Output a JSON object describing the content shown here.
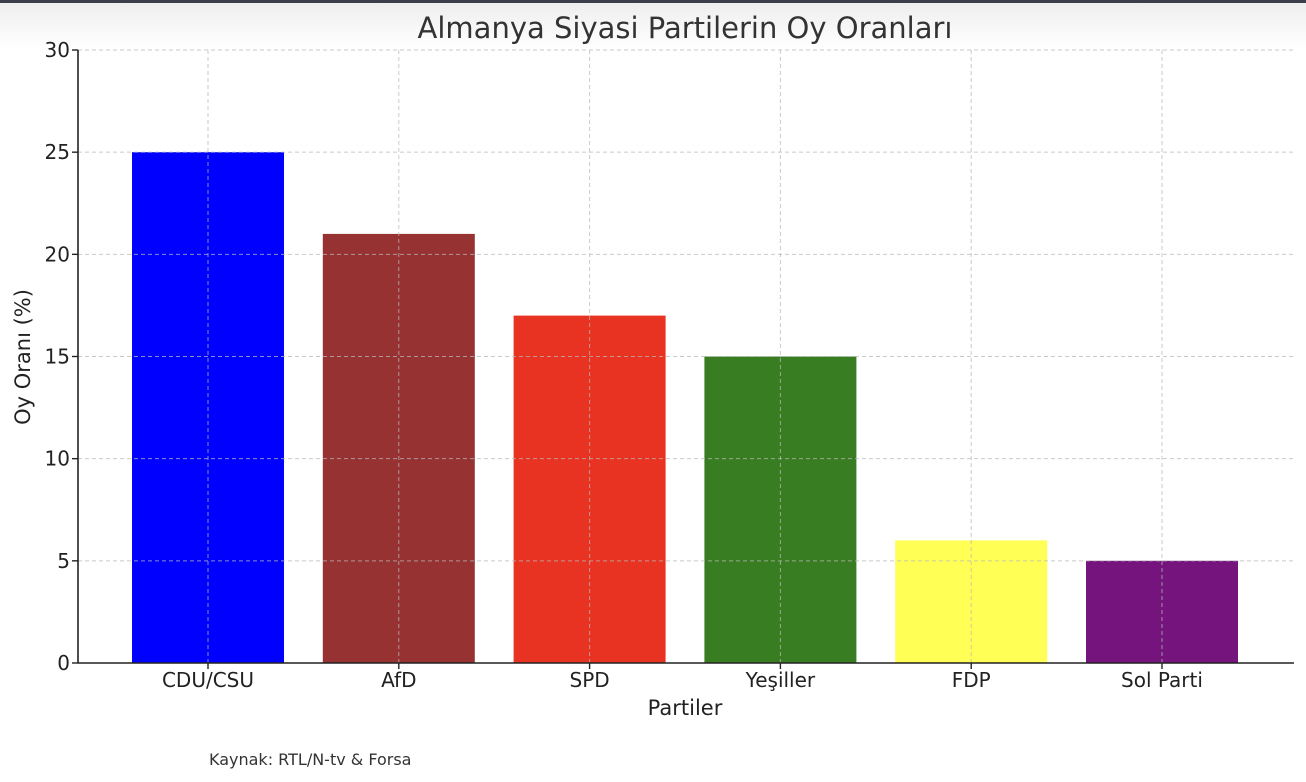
{
  "chart_data": {
    "type": "bar",
    "title": "Almanya Siyasi Partilerin Oy Oranları",
    "xlabel": "Partiler",
    "ylabel": "Oy Oranı (%)",
    "categories": [
      "CDU/CSU",
      "AfD",
      "SPD",
      "Yeşiller",
      "FDP",
      "Sol Parti"
    ],
    "values": [
      25,
      21,
      17,
      15,
      6,
      5
    ],
    "colors": [
      "#0000ff",
      "#963232",
      "#e83323",
      "#387d22",
      "#ffff55",
      "#75147c"
    ],
    "ylim": [
      0,
      30
    ],
    "yticks": [
      0,
      5,
      10,
      15,
      20,
      25,
      30
    ],
    "grid": true,
    "grid_style": "dashed",
    "legend": "none"
  },
  "source_note": "Kaynak: RTL/N-tv & Forsa"
}
